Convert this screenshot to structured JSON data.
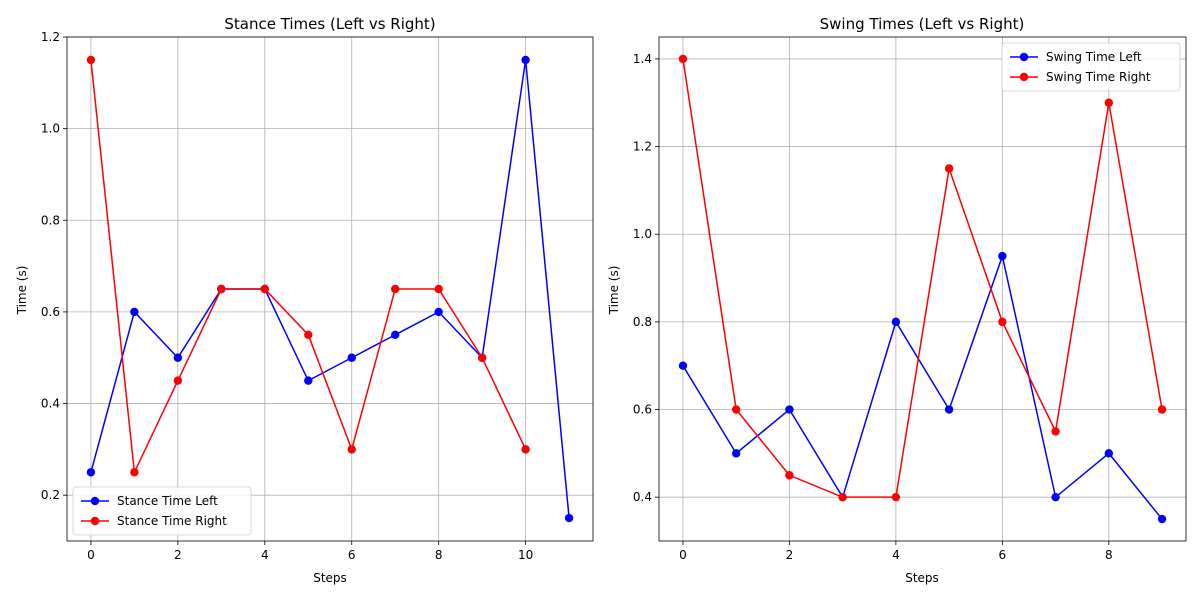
{
  "chart_data": [
    {
      "type": "line",
      "title": "Stance Times (Left vs Right)",
      "xlabel": "Steps",
      "ylabel": "Time (s)",
      "xlim": [
        -0.55,
        11.55
      ],
      "ylim": [
        0.1,
        1.2
      ],
      "xticks": [
        0,
        2,
        4,
        6,
        8,
        10
      ],
      "yticks": [
        0.2,
        0.4,
        0.6,
        0.8,
        1.0,
        1.2
      ],
      "xtick_labels": [
        "0",
        "2",
        "4",
        "6",
        "8",
        "10"
      ],
      "ytick_labels": [
        "0.2",
        "0.4",
        "0.6",
        "0.8",
        "1.0",
        "1.2"
      ],
      "grid": true,
      "legend": "lower-left",
      "series": [
        {
          "name": "Stance Time Left",
          "color": "#0000ff",
          "x": [
            0,
            1,
            2,
            3,
            4,
            5,
            6,
            7,
            8,
            9,
            10,
            11
          ],
          "values": [
            0.25,
            0.6,
            0.5,
            0.65,
            0.65,
            0.45,
            0.5,
            0.55,
            0.6,
            0.5,
            1.15,
            0.15
          ]
        },
        {
          "name": "Stance Time Right",
          "color": "#ff0000",
          "x": [
            0,
            1,
            2,
            3,
            4,
            5,
            6,
            7,
            8,
            9,
            10
          ],
          "values": [
            1.15,
            0.25,
            0.45,
            0.65,
            0.65,
            0.55,
            0.3,
            0.65,
            0.65,
            0.5,
            0.3
          ]
        }
      ]
    },
    {
      "type": "line",
      "title": "Swing Times (Left vs Right)",
      "xlabel": "Steps",
      "ylabel": "Time (s)",
      "xlim": [
        -0.45,
        9.45
      ],
      "ylim": [
        0.3,
        1.45
      ],
      "xticks": [
        0,
        2,
        4,
        6,
        8
      ],
      "yticks": [
        0.4,
        0.6,
        0.8,
        1.0,
        1.2,
        1.4
      ],
      "xtick_labels": [
        "0",
        "2",
        "4",
        "6",
        "8"
      ],
      "ytick_labels": [
        "0.4",
        "0.6",
        "0.8",
        "1.0",
        "1.2",
        "1.4"
      ],
      "grid": true,
      "legend": "upper-right",
      "series": [
        {
          "name": "Swing Time Left",
          "color": "#0000ff",
          "x": [
            0,
            1,
            2,
            3,
            4,
            5,
            6,
            7,
            8,
            9
          ],
          "values": [
            0.7,
            0.5,
            0.6,
            0.4,
            0.8,
            0.6,
            0.95,
            0.4,
            0.5,
            0.35
          ]
        },
        {
          "name": "Swing Time Right",
          "color": "#ff0000",
          "x": [
            0,
            1,
            2,
            3,
            4,
            5,
            6,
            7,
            8,
            9
          ],
          "values": [
            1.4,
            0.6,
            0.45,
            0.4,
            0.4,
            1.15,
            0.8,
            0.55,
            1.3,
            0.6
          ]
        }
      ]
    }
  ]
}
